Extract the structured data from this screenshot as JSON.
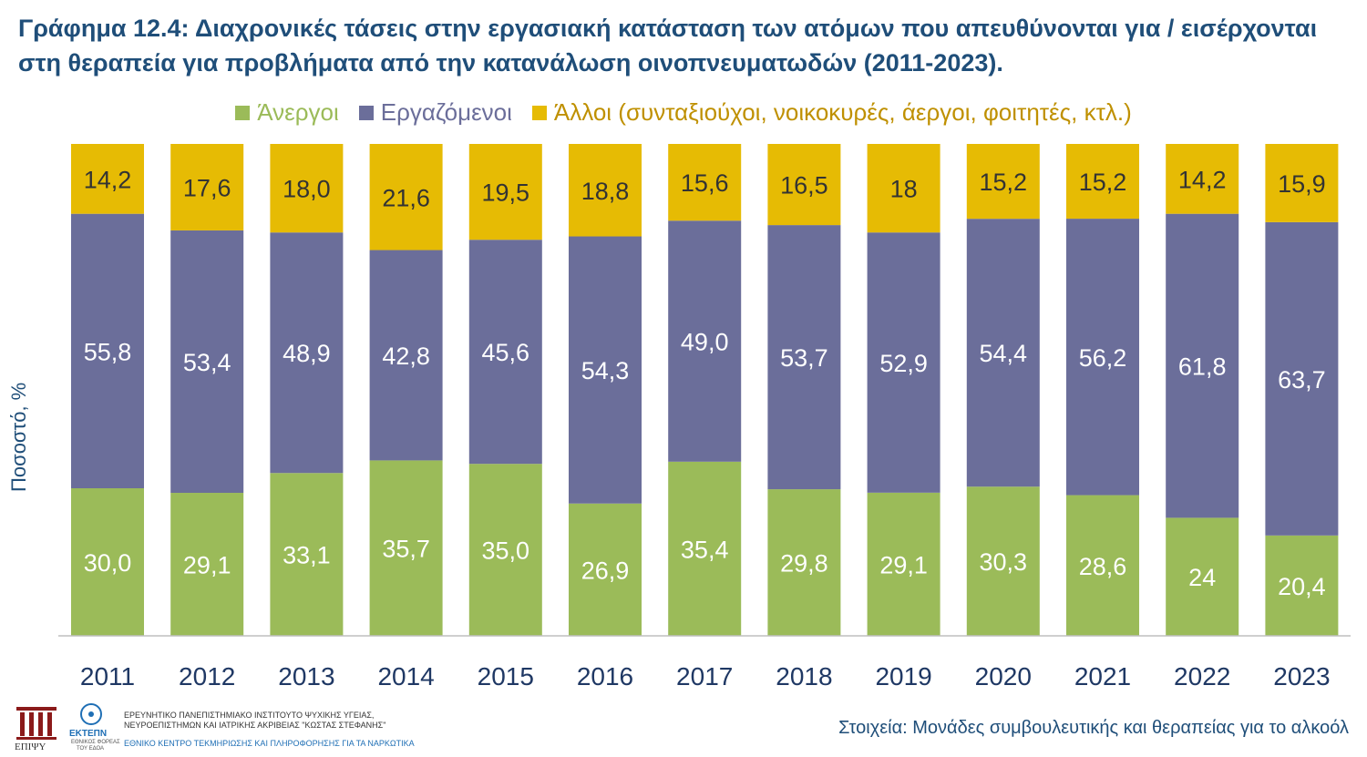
{
  "title": {
    "bold": "Γράφημα 12.4",
    "rest": ": Διαχρονικές τάσεις στην εργασιακή κατάσταση των ατόμων που απευθύνονται για / εισέρχονται στη θεραπεία για προβλήματα από την κατανάλωση οινοπνευματωδών (2011-2023)."
  },
  "ylabel": "Ποσοστό, %",
  "source": "Στοιχεία: Μονάδες συμβουλευτικής και θεραπείας για το αλκοόλ",
  "footer": {
    "logo1_text": "ΕΠΙΨΥ",
    "logo2_text": "ΕΚΤΕΠΝ",
    "logo2_sub1": "ΕΘΝΙΚΟΣ ΦΟΡΕΑΣ",
    "logo2_sub2": "ΤΟΥ ΕΔΟΑ",
    "institute_line1": "ΕΡΕΥΝΗΤΙΚΟ ΠΑΝΕΠΙΣΤΗΜΙΑΚΟ ΙΝΣΤΙΤΟΥΤΟ ΨΥΧΙΚΗΣ ΥΓΕΙΑΣ,",
    "institute_line2": "ΝΕΥΡΟΕΠΙΣΤΗΜΩΝ ΚΑΙ ΙΑΤΡΙΚΗΣ ΑΚΡΙΒΕΙΑΣ \"ΚΩΣΤΑΣ ΣΤΕΦΑΝΗΣ\"",
    "centre_line": "ΕΘΝΙΚΟ ΚΕΝΤΡΟ ΤΕΚΜΗΡΙΩΣΗΣ ΚΑΙ ΠΛΗΡΟΦΟΡΗΣΗΣ ΓΙΑ ΤΑ ΝΑΡΚΩΤΙΚΑ"
  },
  "chart_data": {
    "type": "bar",
    "stacked": true,
    "categories": [
      "2011",
      "2012",
      "2013",
      "2014",
      "2015",
      "2016",
      "2017",
      "2018",
      "2019",
      "2020",
      "2021",
      "2022",
      "2023"
    ],
    "series": [
      {
        "name": "Άνεργοι",
        "color": "#9bbb59",
        "label_color": "#ffffff",
        "values": [
          30.0,
          29.1,
          33.1,
          35.7,
          35.0,
          26.9,
          35.4,
          29.8,
          29.1,
          30.3,
          28.6,
          24,
          20.4
        ],
        "labels": [
          "30,0",
          "29,1",
          "33,1",
          "35,7",
          "35,0",
          "26,9",
          "35,4",
          "29,8",
          "29,1",
          "30,3",
          "28,6",
          "24",
          "20,4"
        ]
      },
      {
        "name": "Εργαζόμενοι",
        "color": "#6b6e9a",
        "label_color": "#ffffff",
        "values": [
          55.8,
          53.4,
          48.9,
          42.8,
          45.6,
          54.3,
          49.0,
          53.7,
          52.9,
          54.4,
          56.2,
          61.8,
          63.7
        ],
        "labels": [
          "55,8",
          "53,4",
          "48,9",
          "42,8",
          "45,6",
          "54,3",
          "49,0",
          "53,7",
          "52,9",
          "54,4",
          "56,2",
          "61,8",
          "63,7"
        ]
      },
      {
        "name": "Άλλοι (συνταξιούχοι, νοικοκυρές, άεργοι, φοιτητές, κτλ.)",
        "color": "#e6bb04",
        "label_color": "#333333",
        "values": [
          14.2,
          17.6,
          18.0,
          21.6,
          19.5,
          18.8,
          15.6,
          16.5,
          18,
          15.2,
          15.2,
          14.2,
          15.9
        ],
        "labels": [
          "14,2",
          "17,6",
          "18,0",
          "21,6",
          "19,5",
          "18,8",
          "15,6",
          "16,5",
          "18",
          "15,2",
          "15,2",
          "14,2",
          "15,9"
        ]
      }
    ],
    "ylim": [
      0,
      100
    ],
    "legend_position": "top-center",
    "grid": false
  }
}
